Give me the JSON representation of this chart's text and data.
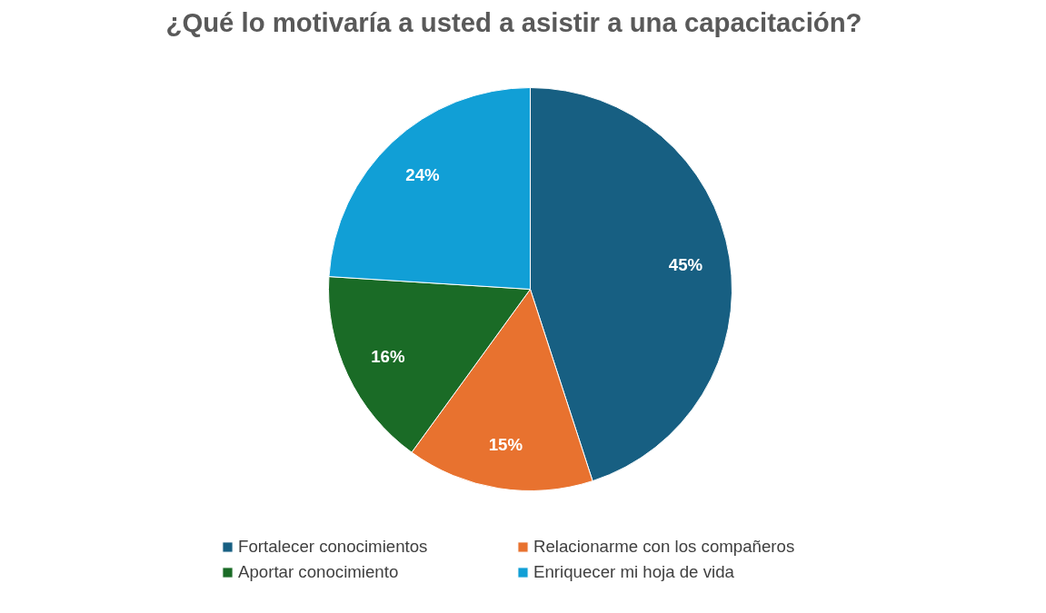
{
  "chart_data": {
    "type": "pie",
    "title": "¿Qué lo motivaría a usted a asistir a una capacitación?",
    "categories": [
      "Fortalecer conocimientos",
      "Relacionarme con los compañeros",
      "Aportar conocimiento",
      "Enriquecer mi hoja de vida"
    ],
    "values": [
      45,
      15,
      16,
      24
    ],
    "colors": [
      "#175f82",
      "#e8722f",
      "#1a6b26",
      "#119fd6"
    ],
    "value_labels": [
      "45%",
      "15%",
      "16%",
      "24%"
    ],
    "legend": "bottom"
  }
}
